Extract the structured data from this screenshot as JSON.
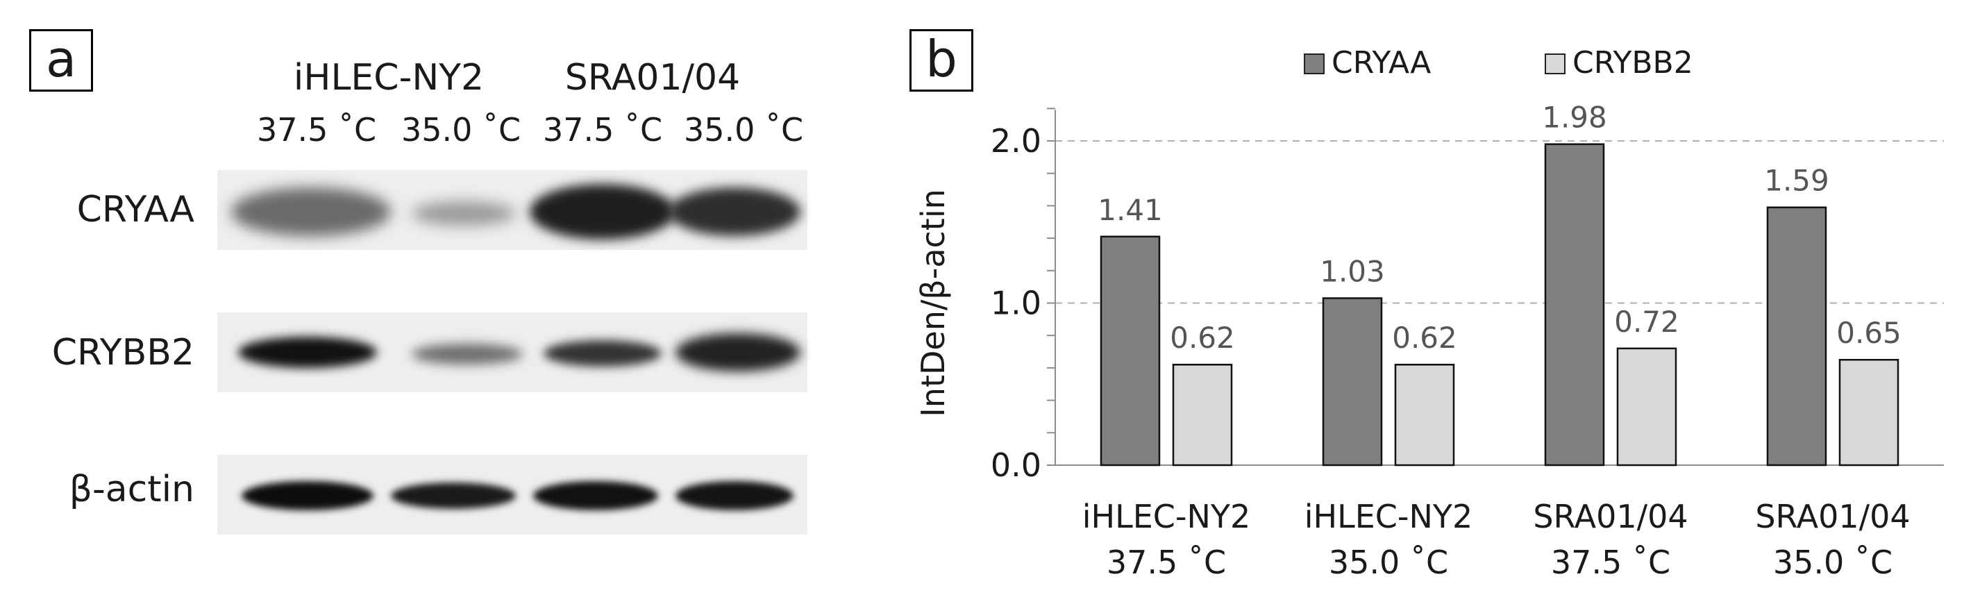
{
  "panel_a": {
    "label": "a",
    "cell_lines": [
      "iHLEC-NY2",
      "SRA01/04"
    ],
    "temperatures": [
      "37.5 ˚C",
      "35.0 ˚C",
      "37.5 ˚C",
      "35.0 ˚C"
    ],
    "rows": [
      "CRYAA",
      "CRYBB2",
      "β-actin"
    ]
  },
  "panel_b": {
    "label": "b"
  },
  "chart_data": {
    "type": "bar",
    "categories": [
      [
        "iHLEC-NY2",
        "37.5 ˚C"
      ],
      [
        "iHLEC-NY2",
        "35.0 ˚C"
      ],
      [
        "SRA01/04",
        "37.5 ˚C"
      ],
      [
        "SRA01/04",
        "35.0 ˚C"
      ]
    ],
    "series": [
      {
        "name": "CRYAA",
        "values": [
          1.41,
          1.03,
          1.98,
          1.59
        ],
        "color": "#7f7f7f"
      },
      {
        "name": "CRYBB2",
        "values": [
          0.62,
          0.62,
          0.72,
          0.65
        ],
        "color": "#d9d9d9"
      }
    ],
    "data_labels": [
      [
        "1.41",
        "1.03",
        "1.98",
        "1.59"
      ],
      [
        "0.62",
        "0.62",
        "0.72",
        "0.65"
      ]
    ],
    "ylabel": "IntDen/β-actin",
    "ylim": [
      0,
      2.0
    ],
    "yticks": [
      "0.0",
      "1.0",
      "2.0"
    ],
    "grid": "dashed at 1.0 and 2.0",
    "legend": "top"
  }
}
